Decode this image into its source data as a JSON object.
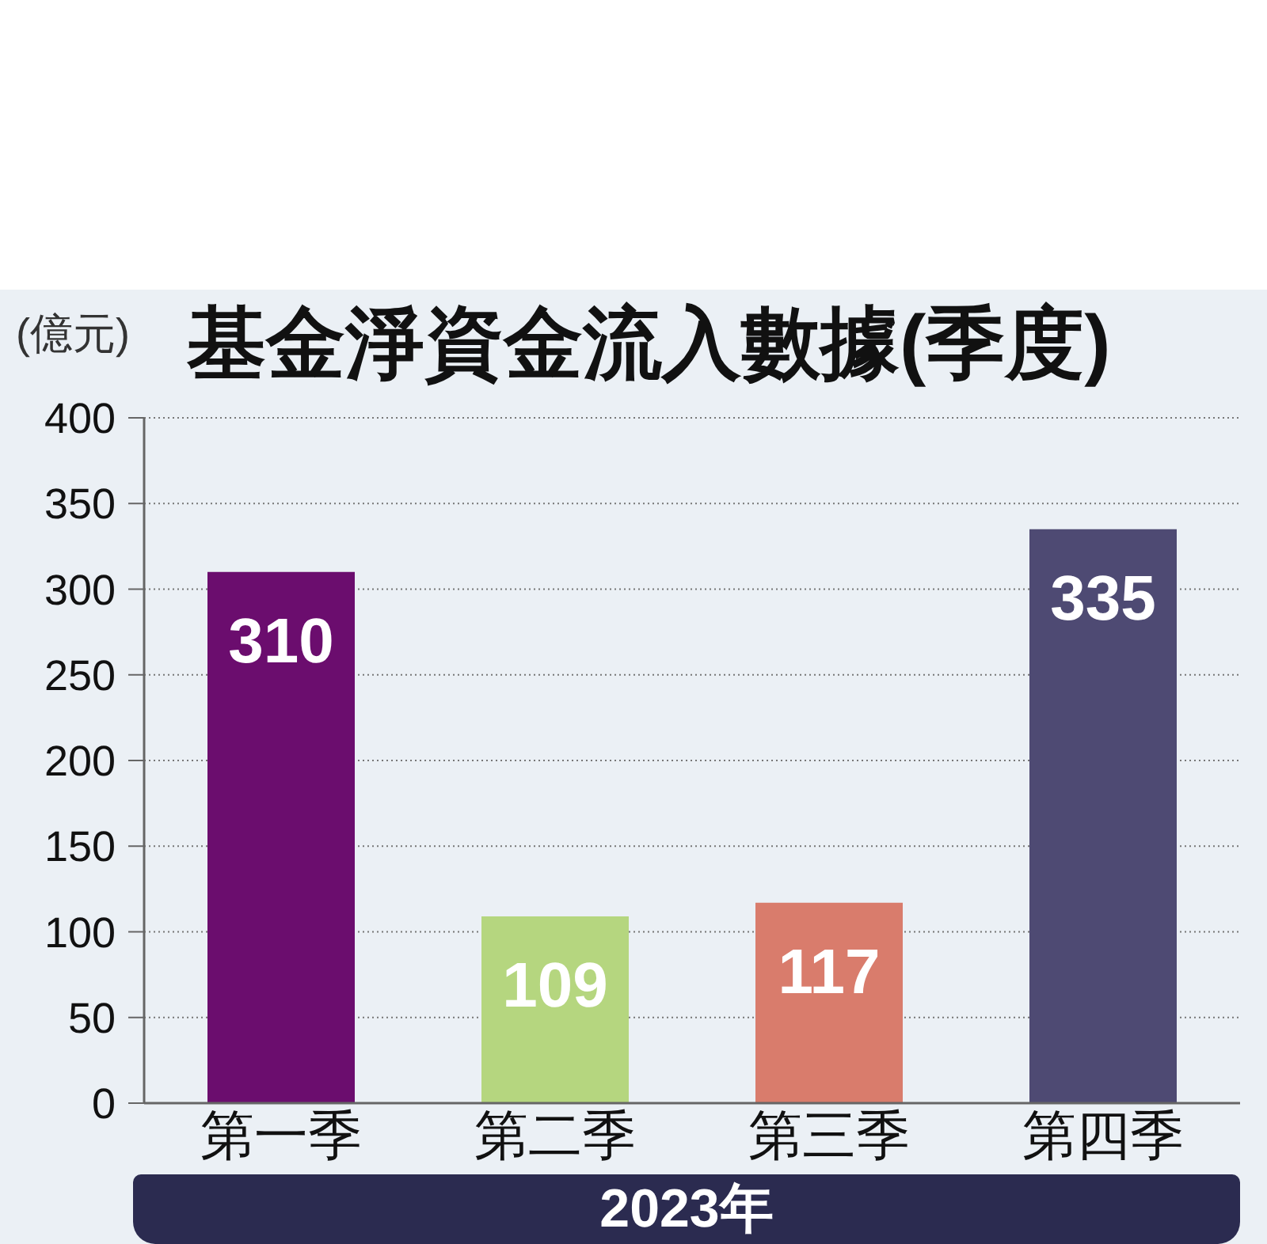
{
  "chart_data": {
    "type": "bar",
    "title": "基金淨資金流入數據(季度)",
    "ylabel": "(億元)",
    "xlabel": "2023年",
    "categories": [
      "第一季",
      "第二季",
      "第三季",
      "第四季"
    ],
    "values": [
      310,
      109,
      117,
      335
    ],
    "colors": [
      "#6b0d6e",
      "#b5d67f",
      "#d97c6c",
      "#4e4a73"
    ],
    "ylim": [
      0,
      400
    ],
    "yticks": [
      0,
      50,
      100,
      150,
      200,
      250,
      300,
      350,
      400
    ],
    "grid": "y",
    "data_labels": true
  }
}
